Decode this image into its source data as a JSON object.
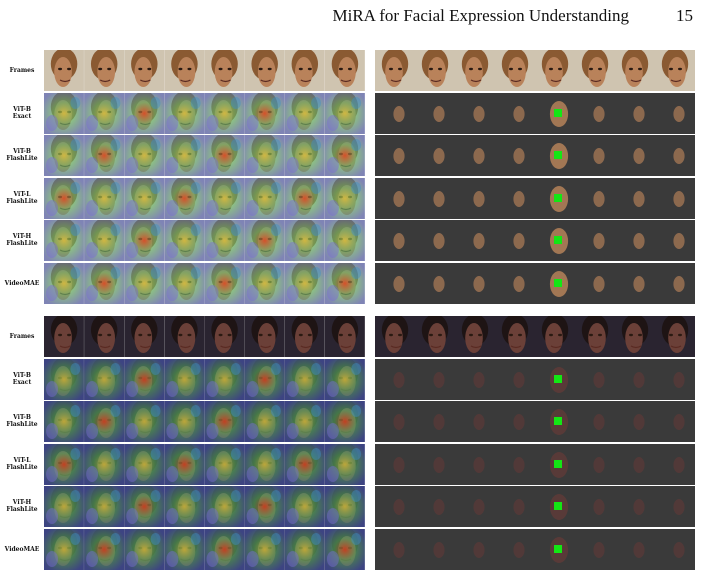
{
  "header": {
    "title": "MiRA for Facial Expression Understanding",
    "page_number": "15"
  },
  "row_labels": [
    "Frames",
    "ViT-B\nExact",
    "ViT-B\nFlashLite",
    "ViT-L\nFlashLite",
    "ViT-H\nFlashLite",
    "VideoMAE"
  ],
  "frames_per_strip": 8,
  "colors": {
    "marker": "#14e614",
    "mask_background": "#3a3a3a"
  },
  "groups": [
    {
      "subject": "woman-face",
      "skin": "#b9825a",
      "hair": "#8a5a32",
      "bg": "#cfc4b0",
      "mask_skin": "#a87a55"
    },
    {
      "subject": "man-face",
      "skin": "#6b4038",
      "hair": "#1e1414",
      "bg": "#2a2430",
      "mask_skin": "#5a3a38"
    }
  ]
}
